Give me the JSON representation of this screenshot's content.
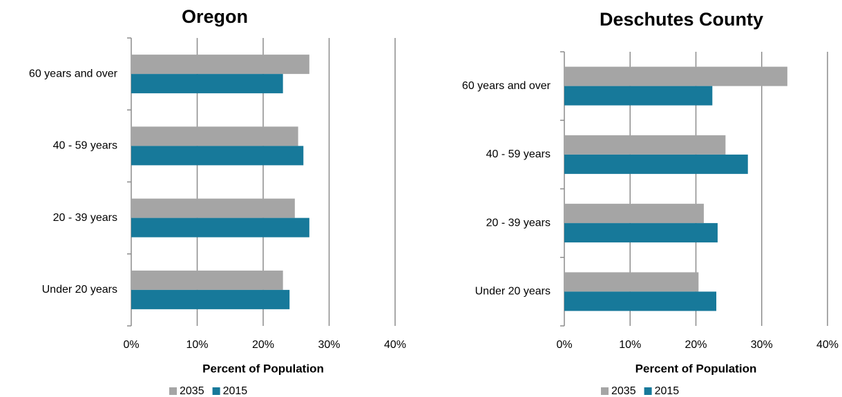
{
  "chart_data": [
    {
      "type": "bar",
      "orientation": "horizontal",
      "title": "Oregon",
      "categories": [
        "60 years and over",
        "40 - 59 years",
        "20 - 39 years",
        "Under 20 years"
      ],
      "series": [
        {
          "name": "2035",
          "color": "#a5a5a5",
          "values": [
            27,
            25.3,
            24.8,
            23
          ]
        },
        {
          "name": "2015",
          "color": "#17799a",
          "values": [
            23,
            26.1,
            27,
            24
          ]
        }
      ],
      "xlabel": "Percent of Population",
      "xlim": [
        0,
        40
      ],
      "xticks": [
        {
          "value": 0,
          "label": "0%"
        },
        {
          "value": 10,
          "label": "10%"
        },
        {
          "value": 20,
          "label": "20%"
        },
        {
          "value": 30,
          "label": "30%"
        },
        {
          "value": 40,
          "label": "40%"
        }
      ],
      "grid": true,
      "legend": "bottom"
    },
    {
      "type": "bar",
      "orientation": "horizontal",
      "title": "Deschutes County",
      "categories": [
        "60 years and over",
        "40 - 59 years",
        "20 - 39 years",
        "Under 20 years"
      ],
      "series": [
        {
          "name": "2035",
          "color": "#a5a5a5",
          "values": [
            33.9,
            24.5,
            21.2,
            20.4
          ]
        },
        {
          "name": "2015",
          "color": "#17799a",
          "values": [
            22.5,
            27.9,
            23.3,
            23.1
          ]
        }
      ],
      "xlabel": "Percent of Population",
      "xlim": [
        0,
        40
      ],
      "xticks": [
        {
          "value": 0,
          "label": "0%"
        },
        {
          "value": 10,
          "label": "10%"
        },
        {
          "value": 20,
          "label": "20%"
        },
        {
          "value": 30,
          "label": "30%"
        },
        {
          "value": 40,
          "label": "40%"
        }
      ],
      "grid": true,
      "legend": "bottom"
    }
  ]
}
